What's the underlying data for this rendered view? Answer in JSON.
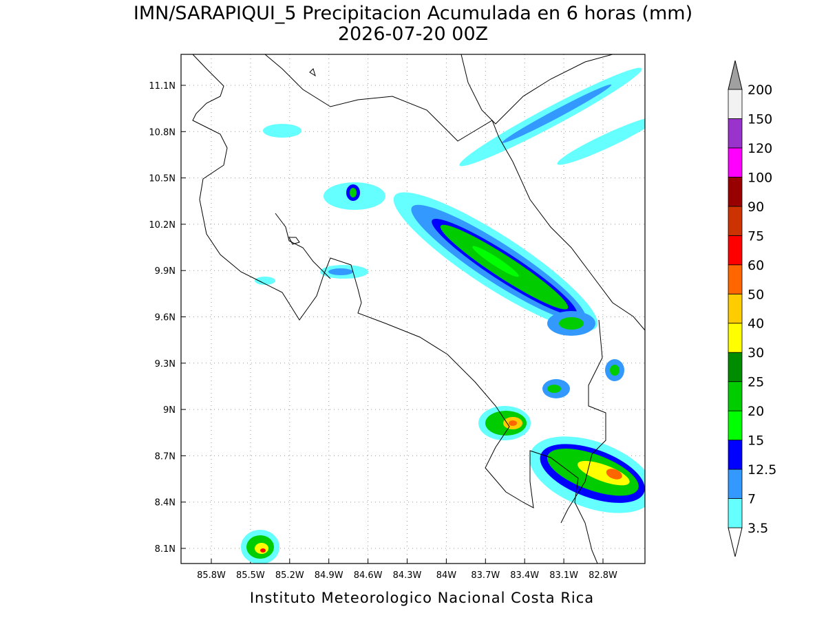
{
  "title": "IMN/SARAPIQUI_5 Precipitacion Acumulada en 6 horas (mm)",
  "subtitle": "2026-07-20 00Z",
  "map": {
    "lon_labels": [
      "85.8W",
      "85.5W",
      "85.2W",
      "84.9W",
      "84.6W",
      "84.3W",
      "84W",
      "83.7W",
      "83.4W",
      "83.1W",
      "82.8W"
    ],
    "lat_labels": [
      "11.1N",
      "10.8N",
      "10.5N",
      "10.2N",
      "9.9N",
      "9.6N",
      "9.3N",
      "9N",
      "8.7N",
      "8.4N",
      "8.1N"
    ]
  },
  "colorbar": {
    "levels": [
      3.5,
      7,
      12.5,
      15,
      20,
      25,
      30,
      40,
      50,
      60,
      75,
      90,
      100,
      120,
      150,
      200
    ],
    "colors": [
      "#66ffff",
      "#3399ff",
      "#0000ff",
      "#00ff00",
      "#00cc00",
      "#008c00",
      "#ffff00",
      "#ffcc00",
      "#ff6600",
      "#ff0000",
      "#cc3300",
      "#990000",
      "#ff00ff",
      "#9933cc",
      "#f2f2f2"
    ]
  },
  "footer": "Instituto Meteorologico Nacional Costa Rica"
}
